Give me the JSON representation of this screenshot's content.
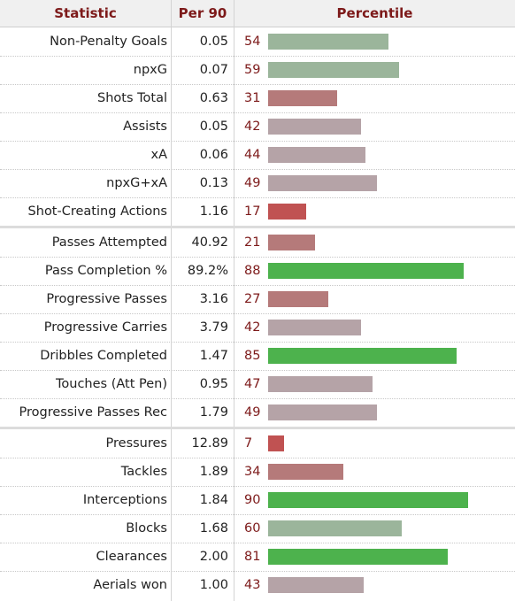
{
  "header": {
    "statistic": "Statistic",
    "per90": "Per 90",
    "percentile": "Percentile"
  },
  "colors": {
    "header_text": "#7d1a1a",
    "very_low": "#c05252",
    "low": "#b57a7a",
    "mid": "#b5a3a7",
    "above": "#9bb59b",
    "high": "#4db24d"
  },
  "chart_data": {
    "type": "table",
    "groups": [
      [
        {
          "stat": "Non-Penalty Goals",
          "per90": "0.05",
          "pct": "54"
        },
        {
          "stat": "npxG",
          "per90": "0.07",
          "pct": "59"
        },
        {
          "stat": "Shots Total",
          "per90": "0.63",
          "pct": "31"
        },
        {
          "stat": "Assists",
          "per90": "0.05",
          "pct": "42"
        },
        {
          "stat": "xA",
          "per90": "0.06",
          "pct": "44"
        },
        {
          "stat": "npxG+xA",
          "per90": "0.13",
          "pct": "49"
        },
        {
          "stat": "Shot-Creating Actions",
          "per90": "1.16",
          "pct": "17"
        }
      ],
      [
        {
          "stat": "Passes Attempted",
          "per90": "40.92",
          "pct": "21"
        },
        {
          "stat": "Pass Completion %",
          "per90": "89.2%",
          "pct": "88"
        },
        {
          "stat": "Progressive Passes",
          "per90": "3.16",
          "pct": "27"
        },
        {
          "stat": "Progressive Carries",
          "per90": "3.79",
          "pct": "42"
        },
        {
          "stat": "Dribbles Completed",
          "per90": "1.47",
          "pct": "85"
        },
        {
          "stat": "Touches (Att Pen)",
          "per90": "0.95",
          "pct": "47"
        },
        {
          "stat": "Progressive Passes Rec",
          "per90": "1.79",
          "pct": "49"
        }
      ],
      [
        {
          "stat": "Pressures",
          "per90": "12.89",
          "pct": "7"
        },
        {
          "stat": "Tackles",
          "per90": "1.89",
          "pct": "34"
        },
        {
          "stat": "Interceptions",
          "per90": "1.84",
          "pct": "90"
        },
        {
          "stat": "Blocks",
          "per90": "1.68",
          "pct": "60"
        },
        {
          "stat": "Clearances",
          "per90": "2.00",
          "pct": "81"
        },
        {
          "stat": "Aerials won",
          "per90": "1.00",
          "pct": "43"
        }
      ]
    ],
    "percentile_range": [
      0,
      100
    ]
  }
}
